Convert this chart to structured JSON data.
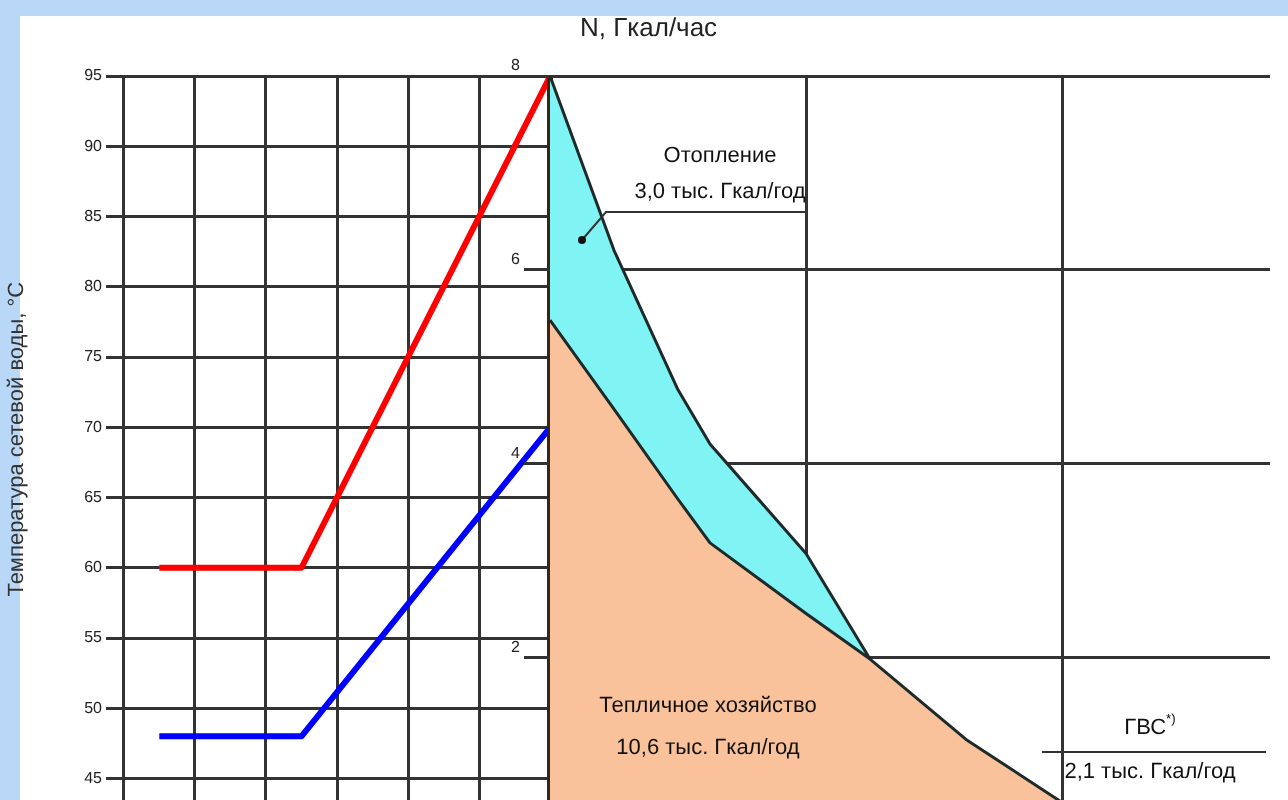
{
  "chart_data": [
    {
      "type": "line",
      "ylabel": "Температура сетевой воды, °С",
      "categories": [
        null,
        null,
        null,
        null,
        null,
        null,
        null,
        null,
        null,
        null,
        null,
        null,
        null
      ],
      "series": [
        {
          "color": "#ff0000",
          "values": [
            null,
            60,
            null,
            null,
            null,
            60,
            null,
            null,
            null,
            null,
            null,
            null,
            95
          ]
        },
        {
          "color": "#0000ff",
          "values": [
            null,
            48,
            null,
            null,
            null,
            48,
            null,
            null,
            null,
            null,
            null,
            null,
            70
          ]
        }
      ],
      "ylim": [
        43.3,
        95
      ],
      "yticks": [
        45,
        50,
        55,
        60,
        65,
        70,
        75,
        80,
        85,
        90,
        95
      ],
      "grid": true,
      "legend": false,
      "marker": "none"
    },
    {
      "type": "area",
      "ylabel": "N, Гкал/час",
      "categories": [
        null,
        null,
        null,
        null,
        null,
        null,
        null,
        null,
        null,
        null,
        null,
        null,
        null,
        null,
        null,
        null,
        null,
        null,
        null,
        null,
        null,
        null,
        null
      ],
      "series": [
        {
          "color": "#f9c29a",
          "values": [
            5.48,
            null,
            4.56,
            null,
            3.63,
            3.18,
            null,
            null,
            2.45,
            null,
            1.98,
            null,
            null,
            1.15,
            null,
            null,
            0.5,
            null,
            null,
            null,
            null,
            null,
            null
          ]
        },
        {
          "color": "#80f4f4",
          "values": [
            8,
            null,
            6.2,
            null,
            4.76,
            4.2,
            null,
            null,
            3.07,
            null,
            1.98,
            null,
            null,
            null,
            null,
            null,
            null,
            null,
            null,
            null,
            null,
            null,
            null
          ]
        }
      ],
      "ylim": [
        0.5,
        8
      ],
      "yticks": [
        2,
        4,
        6,
        8
      ],
      "grid": true,
      "legend": false,
      "marker": "none",
      "annotations": [
        "Отопление",
        "3,0 тыс. Гкал/год",
        "Тепличное хозяйство",
        "10,6 тыс. Гкал/год",
        "ГВС$^{*)}$",
        "2,1 тыс. Гкал/год"
      ]
    }
  ]
}
